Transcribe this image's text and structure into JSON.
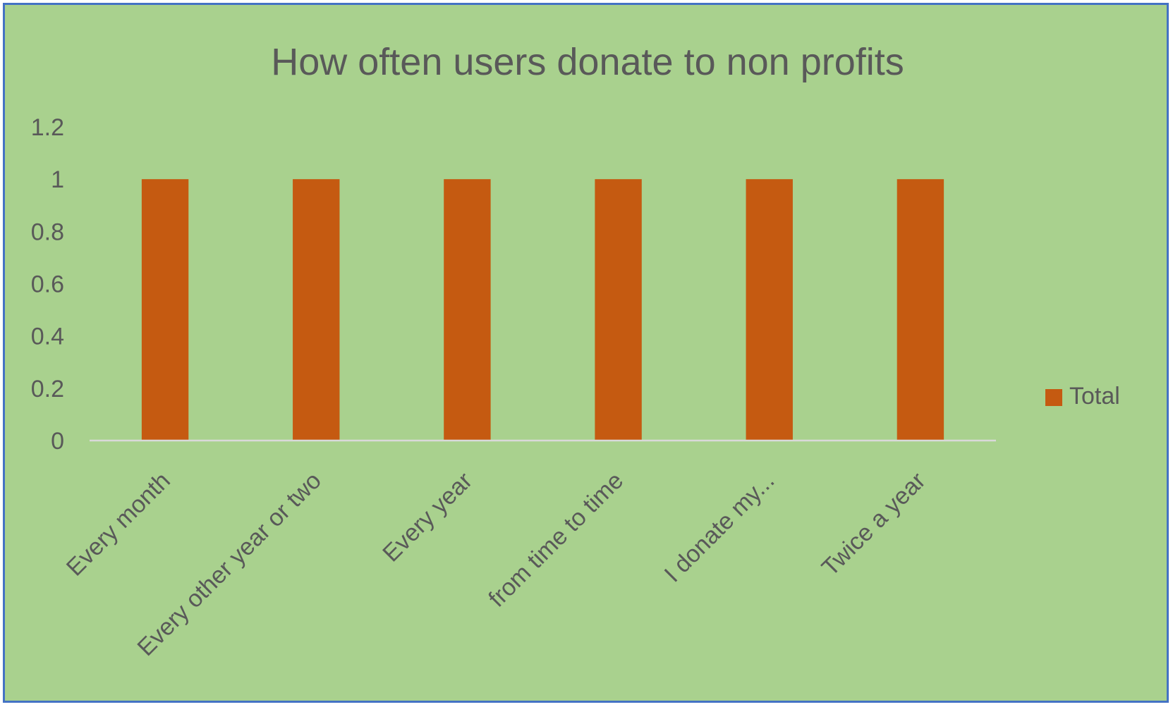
{
  "chart_data": {
    "type": "bar",
    "title": "How often users donate to non profits",
    "categories": [
      "Every month",
      "Every other year or two",
      "Every year",
      "from time to time",
      "I donate my...",
      "Twice a year"
    ],
    "series": [
      {
        "name": "Total",
        "values": [
          1,
          1,
          1,
          1,
          1,
          1
        ]
      }
    ],
    "xlabel": "",
    "ylabel": "",
    "ylim": [
      0,
      1.2
    ],
    "yticks": [
      "0",
      "0.2",
      "0.4",
      "0.6",
      "0.8",
      "1",
      "1.2"
    ],
    "grid": false,
    "legend": "right"
  },
  "colors": {
    "background": "#a9d18e",
    "bar": "#c55a11",
    "border": "#4472c4",
    "axis": "#d9d9d9",
    "text": "#595959"
  }
}
